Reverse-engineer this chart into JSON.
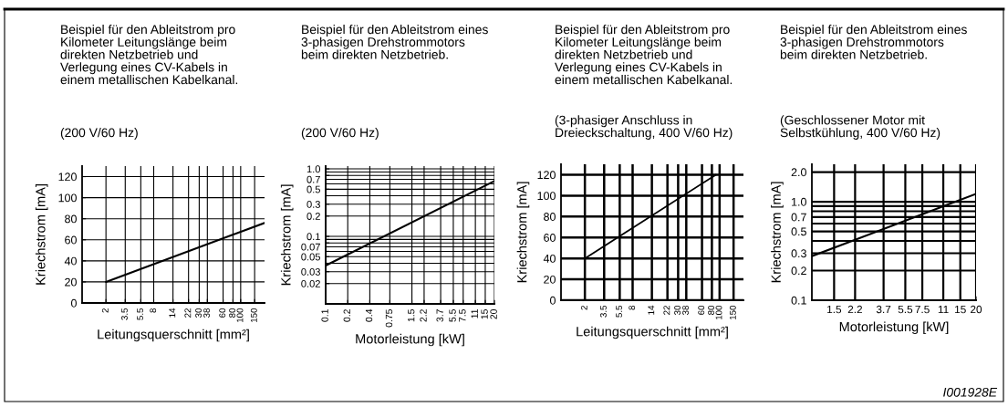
{
  "chart_data": [
    {
      "type": "line",
      "title": "Beispiel für den Ableitstrom pro\nKilometer Leitungslänge beim\ndirekten Netzbetrieb und\nVerlegung eines CV-Kabels in\neinem metallischen Kabelkanal.",
      "subtitle": "(200 V/60 Hz)",
      "xlabel": "Leitungsquerschnitt [mm²]",
      "ylabel": "Kriechstrom [mA]",
      "log": "x",
      "xlim": [
        1,
        200
      ],
      "ylim": [
        0,
        130
      ],
      "xticks": [
        2,
        3.5,
        5.5,
        8,
        14,
        22,
        30,
        38,
        60,
        80,
        100,
        150
      ],
      "yticks": [
        0,
        20,
        40,
        60,
        80,
        100,
        120
      ],
      "grid": true,
      "line_style": "solid",
      "x": [
        2,
        200
      ],
      "series": [
        {
          "color": "#000000",
          "values": [
            20,
            76
          ]
        }
      ]
    },
    {
      "type": "line",
      "title": "Beispiel für den Ableitstrom eines\n3-phasigen Drehstrommotors\nbeim direkten Netzbetrieb.",
      "subtitle": "(200 V/60 Hz)",
      "xlabel": "Motorleistung [kW]",
      "ylabel": "Kriechstrom [mA]",
      "log": "xy",
      "xlim": [
        0.1,
        20
      ],
      "ylim": [
        0.01,
        1.1
      ],
      "xticks": [
        0.1,
        0.2,
        0.4,
        0.75,
        1.5,
        2.2,
        3.7,
        5.5,
        7.5,
        11,
        15,
        20
      ],
      "yticks": [
        0.02,
        0.03,
        {
          "value": 0.04,
          "label": null
        },
        0.05,
        {
          "value": 0.06,
          "label": null
        },
        0.07,
        {
          "value": 0.08,
          "label": null
        },
        {
          "value": 0.09,
          "label": null
        },
        0.1,
        0.2,
        0.3,
        {
          "value": 0.4,
          "label": null
        },
        0.5,
        {
          "value": 0.6,
          "label": null
        },
        0.7,
        {
          "value": 0.8,
          "label": null
        },
        {
          "value": 0.9,
          "label": null
        },
        {
          "value": 1,
          "label": "1.0"
        }
      ],
      "grid": true,
      "line_style": "solid",
      "x": [
        0.1,
        20
      ],
      "series": [
        {
          "color": "#000000",
          "values": [
            0.037,
            0.66
          ]
        }
      ]
    },
    {
      "type": "line",
      "title": "Beispiel für den Ableitstrom pro\nKilometer Leitungslänge beim\ndirekten Netzbetrieb und\nVerlegung eines CV-Kabels in\neinem metallischen Kabelkanal.",
      "subtitle": "(3-phasiger Anschluss in\nDreieckschaltung, 400 V/60 Hz)",
      "xlabel": "Leitungsquerschnitt [mm²]",
      "ylabel": "Kriechstrom [mA]",
      "log": "x",
      "xlim": [
        1,
        200
      ],
      "ylim": [
        0,
        130
      ],
      "xticks": [
        2,
        3.5,
        5.5,
        8,
        14,
        22,
        30,
        38,
        60,
        80,
        100,
        150
      ],
      "yticks": [
        0,
        20,
        40,
        60,
        80,
        100,
        120
      ],
      "grid": true,
      "line_style": "solid",
      "x": [
        2,
        90
      ],
      "series": [
        {
          "color": "#000000",
          "values": [
            40,
            120
          ]
        }
      ]
    },
    {
      "type": "line",
      "title": "Beispiel für den Ableitstrom eines\n3-phasigen Drehstrommotors\nbeim direkten Netzbetrieb.",
      "subtitle": "(Geschlossener Motor mit\nSelbstkühlung, 400 V/60 Hz)",
      "xlabel": "Motorleistung [kW]",
      "ylabel": "Kriechstrom [mA]",
      "log": "xy",
      "xlim": [
        1,
        20
      ],
      "ylim": [
        0.1,
        2.4
      ],
      "xticks": [
        1.5,
        2.2,
        3.7,
        5.5,
        7.5,
        11,
        15,
        20
      ],
      "yticks": [
        0.1,
        0.2,
        0.3,
        {
          "value": 0.4,
          "label": null
        },
        0.5,
        {
          "value": 0.6,
          "label": null
        },
        0.7,
        {
          "value": 0.8,
          "label": null
        },
        {
          "value": 0.9,
          "label": null
        },
        {
          "value": 1,
          "label": "1.0"
        },
        {
          "value": 2,
          "label": "2.0"
        }
      ],
      "grid": true,
      "line_style": "solid",
      "x": [
        1,
        20
      ],
      "series": [
        {
          "color": "#000000",
          "values": [
            0.28,
            1.2
          ]
        }
      ],
      "annotations": [
        "I001928E"
      ]
    }
  ]
}
